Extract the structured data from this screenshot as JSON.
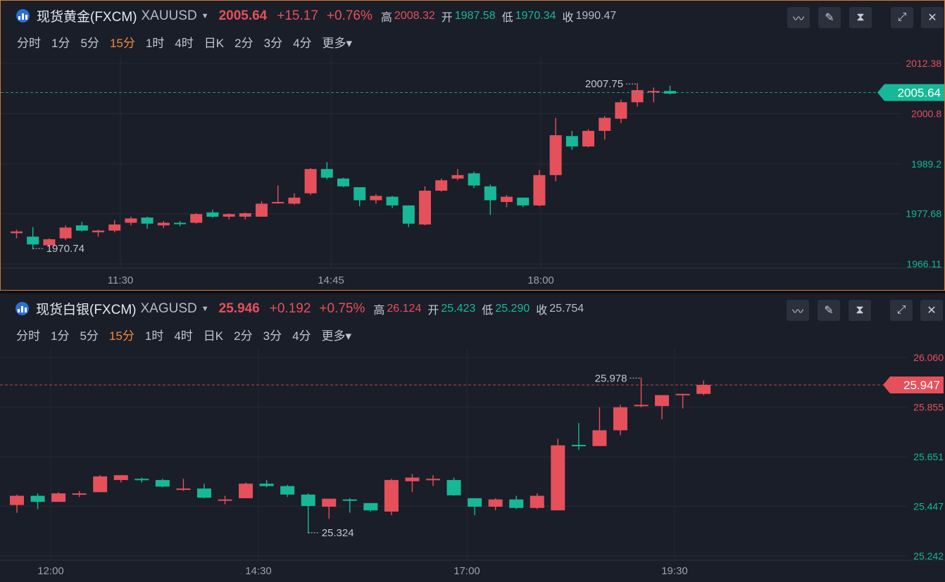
{
  "panels": [
    {
      "name": "现货黄金(FXCM)",
      "symbol": "XAUUSD",
      "price": "2005.64",
      "change": "+15.17",
      "change_pct": "+0.76%",
      "high_label": "高",
      "high": "2008.32",
      "open_label": "开",
      "open": "1987.58",
      "low_label": "低",
      "low": "1970.34",
      "close_label": "收",
      "close": "1990.47",
      "periods": [
        "分时",
        "1分",
        "5分",
        "15分",
        "1时",
        "4时",
        "日K",
        "2分",
        "3分",
        "4分",
        "更多"
      ],
      "selected_period": "15分",
      "tools": [
        "indicator-icon",
        "draw-icon",
        "candle-type-icon",
        "expand-icon",
        "close-icon"
      ]
    },
    {
      "name": "现货白银(FXCM)",
      "symbol": "XAGUSD",
      "price": "25.946",
      "change": "+0.192",
      "change_pct": "+0.75%",
      "high_label": "高",
      "high": "26.124",
      "open_label": "开",
      "open": "25.423",
      "low_label": "低",
      "low": "25.290",
      "close_label": "收",
      "close": "25.754",
      "periods": [
        "分时",
        "1分",
        "5分",
        "15分",
        "1时",
        "4时",
        "日K",
        "2分",
        "3分",
        "4分",
        "更多"
      ],
      "selected_period": "15分",
      "tools": [
        "indicator-icon",
        "draw-icon",
        "candle-type-icon",
        "expand-icon",
        "close-icon"
      ]
    }
  ],
  "chart_data": [
    {
      "type": "candlestick",
      "instrument": "XAUUSD",
      "yticks": [
        "2012.38",
        "2000.8",
        "1989.2",
        "1977.68",
        "1966.11"
      ],
      "ylim": [
        1966.11,
        2012.38
      ],
      "xticks": [
        {
          "label": "11:30",
          "index": 7
        },
        {
          "label": "14:45",
          "index": 20
        },
        {
          "label": "18:00",
          "index": 33
        }
      ],
      "current_price": "2005.64",
      "max_label": "2007.75",
      "min_label": "1970.74",
      "candles": [
        {
          "o": 1973.2,
          "h": 1974.0,
          "l": 1972.0,
          "c": 1973.6
        },
        {
          "o": 1972.4,
          "h": 1974.6,
          "l": 1969.5,
          "c": 1970.6
        },
        {
          "o": 1970.4,
          "h": 1972.0,
          "l": 1970.0,
          "c": 1971.8
        },
        {
          "o": 1972.0,
          "h": 1975.0,
          "l": 1971.6,
          "c": 1974.5
        },
        {
          "o": 1975.0,
          "h": 1975.8,
          "l": 1973.6,
          "c": 1973.8
        },
        {
          "o": 1973.4,
          "h": 1974.0,
          "l": 1972.4,
          "c": 1973.8
        },
        {
          "o": 1973.8,
          "h": 1976.2,
          "l": 1973.4,
          "c": 1975.2
        },
        {
          "o": 1975.6,
          "h": 1977.0,
          "l": 1975.0,
          "c": 1976.6
        },
        {
          "o": 1976.8,
          "h": 1977.0,
          "l": 1974.2,
          "c": 1975.4
        },
        {
          "o": 1975.0,
          "h": 1976.0,
          "l": 1974.4,
          "c": 1975.6
        },
        {
          "o": 1975.6,
          "h": 1976.0,
          "l": 1974.8,
          "c": 1975.4
        },
        {
          "o": 1975.6,
          "h": 1977.8,
          "l": 1975.4,
          "c": 1977.6
        },
        {
          "o": 1978.0,
          "h": 1978.6,
          "l": 1976.8,
          "c": 1977.0
        },
        {
          "o": 1977.0,
          "h": 1977.8,
          "l": 1976.4,
          "c": 1977.6
        },
        {
          "o": 1977.0,
          "h": 1978.0,
          "l": 1976.4,
          "c": 1977.8
        },
        {
          "o": 1977.0,
          "h": 1980.6,
          "l": 1977.0,
          "c": 1980.0
        },
        {
          "o": 1980.2,
          "h": 1984.2,
          "l": 1980.0,
          "c": 1980.4
        },
        {
          "o": 1980.0,
          "h": 1982.4,
          "l": 1979.8,
          "c": 1981.4
        },
        {
          "o": 1982.4,
          "h": 1988.2,
          "l": 1982.0,
          "c": 1988.0
        },
        {
          "o": 1988.0,
          "h": 1989.6,
          "l": 1985.6,
          "c": 1986.0
        },
        {
          "o": 1985.8,
          "h": 1986.0,
          "l": 1983.8,
          "c": 1984.0
        },
        {
          "o": 1983.8,
          "h": 1983.8,
          "l": 1979.4,
          "c": 1980.8
        },
        {
          "o": 1980.8,
          "h": 1982.2,
          "l": 1980.0,
          "c": 1981.8
        },
        {
          "o": 1981.6,
          "h": 1981.8,
          "l": 1979.0,
          "c": 1979.6
        },
        {
          "o": 1979.6,
          "h": 1979.6,
          "l": 1974.6,
          "c": 1975.4
        },
        {
          "o": 1975.2,
          "h": 1984.0,
          "l": 1975.0,
          "c": 1983.0
        },
        {
          "o": 1983.0,
          "h": 1985.8,
          "l": 1982.8,
          "c": 1985.4
        },
        {
          "o": 1985.8,
          "h": 1988.0,
          "l": 1985.4,
          "c": 1986.6
        },
        {
          "o": 1987.0,
          "h": 1987.4,
          "l": 1983.6,
          "c": 1984.2
        },
        {
          "o": 1984.0,
          "h": 1984.4,
          "l": 1977.4,
          "c": 1980.8
        },
        {
          "o": 1980.4,
          "h": 1982.0,
          "l": 1979.2,
          "c": 1981.6
        },
        {
          "o": 1981.4,
          "h": 1981.4,
          "l": 1979.2,
          "c": 1979.6
        },
        {
          "o": 1979.6,
          "h": 1987.8,
          "l": 1979.4,
          "c": 1986.6
        },
        {
          "o": 1986.6,
          "h": 1999.8,
          "l": 1985.2,
          "c": 1995.8
        },
        {
          "o": 1995.6,
          "h": 1996.8,
          "l": 1992.4,
          "c": 1993.2
        },
        {
          "o": 1993.2,
          "h": 1997.2,
          "l": 1993.0,
          "c": 1996.8
        },
        {
          "o": 1996.8,
          "h": 2000.2,
          "l": 1994.8,
          "c": 1999.8
        },
        {
          "o": 1999.6,
          "h": 2004.0,
          "l": 1998.6,
          "c": 2003.4
        },
        {
          "o": 2003.4,
          "h": 2007.8,
          "l": 2002.4,
          "c": 2006.2
        },
        {
          "o": 2006.0,
          "h": 2006.8,
          "l": 2003.4,
          "c": 2006.0
        },
        {
          "o": 2006.0,
          "h": 2007.2,
          "l": 2005.2,
          "c": 2005.4
        }
      ]
    },
    {
      "type": "candlestick",
      "instrument": "XAGUSD",
      "yticks": [
        "26.060",
        "25.855",
        "25.651",
        "25.447",
        "25.242"
      ],
      "ylim": [
        25.242,
        26.06
      ],
      "xticks": [
        {
          "label": "12:00",
          "index": 2
        },
        {
          "label": "14:30",
          "index": 12
        },
        {
          "label": "17:00",
          "index": 22
        },
        {
          "label": "19:30",
          "index": 32
        }
      ],
      "current_price": "25.947",
      "max_label": "25.978",
      "min_label": "25.324",
      "candles": [
        {
          "o": 25.452,
          "h": 25.495,
          "l": 25.42,
          "c": 25.49
        },
        {
          "o": 25.49,
          "h": 25.5,
          "l": 25.435,
          "c": 25.465
        },
        {
          "o": 25.465,
          "h": 25.505,
          "l": 25.465,
          "c": 25.5
        },
        {
          "o": 25.5,
          "h": 25.51,
          "l": 25.485,
          "c": 25.5
        },
        {
          "o": 25.505,
          "h": 25.575,
          "l": 25.505,
          "c": 25.57
        },
        {
          "o": 25.555,
          "h": 25.575,
          "l": 25.545,
          "c": 25.575
        },
        {
          "o": 25.56,
          "h": 25.565,
          "l": 25.545,
          "c": 25.555
        },
        {
          "o": 25.555,
          "h": 25.56,
          "l": 25.525,
          "c": 25.528
        },
        {
          "o": 25.52,
          "h": 25.56,
          "l": 25.51,
          "c": 25.52
        },
        {
          "o": 25.52,
          "h": 25.54,
          "l": 25.48,
          "c": 25.482
        },
        {
          "o": 25.475,
          "h": 25.49,
          "l": 25.455,
          "c": 25.475
        },
        {
          "o": 25.48,
          "h": 25.545,
          "l": 25.48,
          "c": 25.54
        },
        {
          "o": 25.54,
          "h": 25.555,
          "l": 25.525,
          "c": 25.53
        },
        {
          "o": 25.53,
          "h": 25.535,
          "l": 25.485,
          "c": 25.495
        },
        {
          "o": 25.495,
          "h": 25.5,
          "l": 25.335,
          "c": 25.448
        },
        {
          "o": 25.445,
          "h": 25.475,
          "l": 25.395,
          "c": 25.478
        },
        {
          "o": 25.475,
          "h": 25.48,
          "l": 25.42,
          "c": 25.47
        },
        {
          "o": 25.46,
          "h": 25.46,
          "l": 25.425,
          "c": 25.43
        },
        {
          "o": 25.425,
          "h": 25.56,
          "l": 25.41,
          "c": 25.555
        },
        {
          "o": 25.55,
          "h": 25.58,
          "l": 25.505,
          "c": 25.565
        },
        {
          "o": 25.56,
          "h": 25.575,
          "l": 25.53,
          "c": 25.56
        },
        {
          "o": 25.555,
          "h": 25.565,
          "l": 25.49,
          "c": 25.492
        },
        {
          "o": 25.48,
          "h": 25.48,
          "l": 25.41,
          "c": 25.445
        },
        {
          "o": 25.445,
          "h": 25.48,
          "l": 25.43,
          "c": 25.475
        },
        {
          "o": 25.475,
          "h": 25.49,
          "l": 25.435,
          "c": 25.44
        },
        {
          "o": 25.44,
          "h": 25.5,
          "l": 25.435,
          "c": 25.49
        },
        {
          "o": 25.43,
          "h": 25.725,
          "l": 25.43,
          "c": 25.698
        },
        {
          "o": 25.7,
          "h": 25.79,
          "l": 25.68,
          "c": 25.695
        },
        {
          "o": 25.695,
          "h": 25.855,
          "l": 25.695,
          "c": 25.76
        },
        {
          "o": 25.76,
          "h": 25.865,
          "l": 25.74,
          "c": 25.855
        },
        {
          "o": 25.86,
          "h": 25.978,
          "l": 25.855,
          "c": 25.865
        },
        {
          "o": 25.86,
          "h": 25.9,
          "l": 25.805,
          "c": 25.905
        },
        {
          "o": 25.905,
          "h": 25.91,
          "l": 25.85,
          "c": 25.91
        },
        {
          "o": 25.91,
          "h": 25.965,
          "l": 25.905,
          "c": 25.947
        }
      ]
    }
  ]
}
